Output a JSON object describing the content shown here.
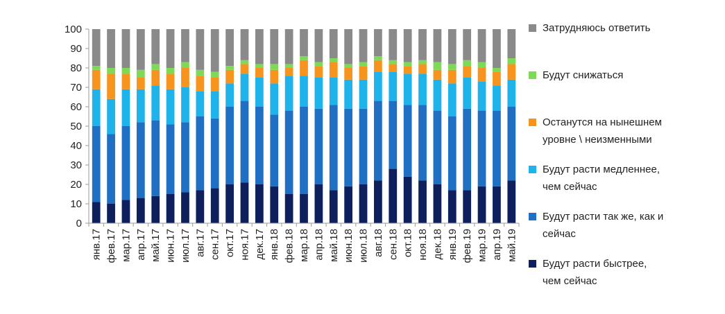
{
  "chart_data": {
    "type": "bar",
    "stacked": true,
    "title": "",
    "xlabel": "",
    "ylabel": "",
    "ylim": [
      0,
      100
    ],
    "yticks": [
      0,
      10,
      20,
      30,
      40,
      50,
      60,
      70,
      80,
      90,
      100
    ],
    "grid": false,
    "legend_position": "right",
    "categories": [
      "янв.17",
      "фев.17",
      "мар.17",
      "апр.17",
      "май.17",
      "июн.17",
      "июл.17",
      "авг.17",
      "сен.17",
      "окт.17",
      "ноя.17",
      "дек.17",
      "янв.18",
      "фев.18",
      "мар.18",
      "апр.18",
      "май.18",
      "июн.18",
      "июл.18",
      "авг.18",
      "сен.18",
      "окт.18",
      "ноя.18",
      "дек.18",
      "янв.19",
      "фев.19",
      "мар.19",
      "апр.19",
      "май.19"
    ],
    "series": [
      {
        "name": "Будут расти быстрее, чем сейчас",
        "color": "#0d1f5c",
        "values": [
          11,
          10,
          12,
          13,
          14,
          15,
          16,
          17,
          18,
          20,
          21,
          20,
          19,
          15,
          15,
          20,
          17,
          19,
          20,
          22,
          28,
          24,
          22,
          20,
          17,
          17,
          19,
          19,
          22
        ]
      },
      {
        "name": "Будут расти так же, как и сейчас",
        "color": "#1f6fc5",
        "values": [
          39,
          36,
          38,
          39,
          39,
          36,
          36,
          38,
          36,
          40,
          42,
          40,
          37,
          43,
          45,
          39,
          44,
          40,
          39,
          41,
          35,
          37,
          39,
          38,
          38,
          42,
          39,
          39,
          38
        ]
      },
      {
        "name": "Будут расти медленнее, чем сейчас",
        "color": "#1fb3ec",
        "values": [
          19,
          18,
          19,
          17,
          18,
          18,
          18,
          13,
          14,
          12,
          14,
          15,
          16,
          18,
          16,
          16,
          14,
          15,
          15,
          15,
          15,
          16,
          16,
          16,
          17,
          16,
          15,
          13,
          14
        ]
      },
      {
        "name": "Останутся на нынешнем уровне \\ неизменными",
        "color": "#f7941d",
        "values": [
          10,
          13,
          8,
          6,
          8,
          8,
          10,
          8,
          7,
          7,
          5,
          5,
          7,
          4,
          8,
          6,
          8,
          6,
          7,
          6,
          4,
          4,
          5,
          5,
          7,
          6,
          7,
          7,
          8
        ]
      },
      {
        "name": "Будут снижаться",
        "color": "#7ed957",
        "values": [
          2,
          3,
          3,
          4,
          3,
          3,
          3,
          3,
          3,
          2,
          2,
          2,
          3,
          2,
          2,
          2,
          2,
          2,
          2,
          2,
          2,
          2,
          2,
          4,
          3,
          3,
          3,
          2,
          3
        ]
      },
      {
        "name": "Затрудняюсь ответить",
        "color": "#8a8a8a",
        "values": [
          19,
          20,
          20,
          21,
          18,
          20,
          17,
          21,
          22,
          19,
          16,
          18,
          18,
          18,
          14,
          17,
          15,
          18,
          17,
          14,
          16,
          17,
          16,
          17,
          18,
          16,
          17,
          20,
          15
        ]
      }
    ]
  }
}
